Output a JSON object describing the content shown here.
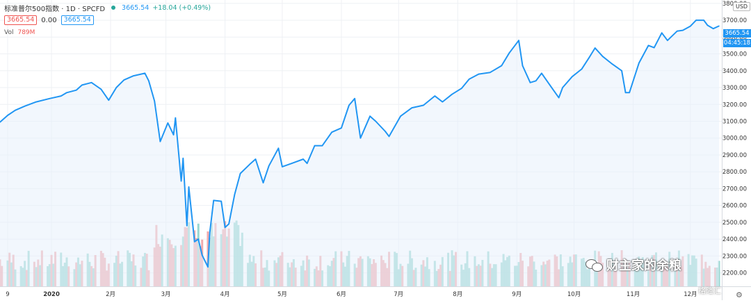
{
  "header": {
    "symbol_title": "标准普尔500指数 · 1D · SPCFD",
    "last_value": "3665.54",
    "change": "+18.04 (+0.49%)",
    "box_red": "3665.54",
    "zero_value": "0.00",
    "box_blue": "3665.54",
    "volume_label": "Vol",
    "volume_value": "789M",
    "currency": "USD",
    "price_label": "3665.54",
    "countdown": "04:45:18"
  },
  "watermark": {
    "text": "财主家的余粮",
    "footer": "格隆汇"
  },
  "colors": {
    "line": "#2196f3",
    "area": "#e8f1fc",
    "volume_up": "#8ed3cc",
    "volume_down": "#f0a1a5",
    "grid": "#eef0f4"
  },
  "icons": [
    "wechat-icon",
    "gear-icon"
  ],
  "chart_data": {
    "type": "line",
    "title": "标准普尔500指数 · 1D · SPCFD",
    "xlabel": "",
    "ylabel": "",
    "ylim": [
      2120,
      3820
    ],
    "y_ticks": [
      2200,
      2300,
      2400,
      2500,
      2600,
      2700,
      2800,
      2900,
      3000,
      3100,
      3200,
      3300,
      3400,
      3500,
      3600,
      3700,
      3800
    ],
    "x_ticks": [
      {
        "label": "9",
        "date": "2019-12-09"
      },
      {
        "label": "2020",
        "date": "2020-01-01"
      },
      {
        "label": "2月",
        "date": "2020-02-01"
      },
      {
        "label": "3月",
        "date": "2020-03-01"
      },
      {
        "label": "4月",
        "date": "2020-04-01"
      },
      {
        "label": "5月",
        "date": "2020-05-01"
      },
      {
        "label": "6月",
        "date": "2020-06-01"
      },
      {
        "label": "7月",
        "date": "2020-07-01"
      },
      {
        "label": "8月",
        "date": "2020-08-01"
      },
      {
        "label": "9月",
        "date": "2020-09-01"
      },
      {
        "label": "10月",
        "date": "2020-10-01"
      },
      {
        "label": "11月",
        "date": "2020-11-01"
      },
      {
        "label": "12月",
        "date": "2020-12-01"
      }
    ],
    "x_range": [
      "2019-12-05",
      "2020-12-16"
    ],
    "grid": true,
    "series": [
      {
        "name": "",
        "points": [
          [
            "2019-12-05",
            3095
          ],
          [
            "2019-12-09",
            3135
          ],
          [
            "2019-12-13",
            3165
          ],
          [
            "2019-12-18",
            3190
          ],
          [
            "2019-12-24",
            3215
          ],
          [
            "2019-12-31",
            3235
          ],
          [
            "2020-01-06",
            3250
          ],
          [
            "2020-01-09",
            3270
          ],
          [
            "2020-01-14",
            3285
          ],
          [
            "2020-01-17",
            3315
          ],
          [
            "2020-01-22",
            3330
          ],
          [
            "2020-01-27",
            3290
          ],
          [
            "2020-01-31",
            3225
          ],
          [
            "2020-02-04",
            3300
          ],
          [
            "2020-02-08",
            3345
          ],
          [
            "2020-02-13",
            3370
          ],
          [
            "2020-02-19",
            3385
          ],
          [
            "2020-02-21",
            3340
          ],
          [
            "2020-02-24",
            3220
          ],
          [
            "2020-02-27",
            2980
          ],
          [
            "2020-03-02",
            3090
          ],
          [
            "2020-03-05",
            3020
          ],
          [
            "2020-03-06",
            3120
          ],
          [
            "2020-03-09",
            2745
          ],
          [
            "2020-03-10",
            2880
          ],
          [
            "2020-03-12",
            2480
          ],
          [
            "2020-03-13",
            2710
          ],
          [
            "2020-03-16",
            2385
          ],
          [
            "2020-03-18",
            2400
          ],
          [
            "2020-03-20",
            2305
          ],
          [
            "2020-03-23",
            2235
          ],
          [
            "2020-03-24",
            2440
          ],
          [
            "2020-03-26",
            2630
          ],
          [
            "2020-03-30",
            2625
          ],
          [
            "2020-04-01",
            2470
          ],
          [
            "2020-04-03",
            2490
          ],
          [
            "2020-04-06",
            2665
          ],
          [
            "2020-04-09",
            2790
          ],
          [
            "2020-04-14",
            2845
          ],
          [
            "2020-04-17",
            2875
          ],
          [
            "2020-04-21",
            2735
          ],
          [
            "2020-04-24",
            2835
          ],
          [
            "2020-04-29",
            2940
          ],
          [
            "2020-05-01",
            2830
          ],
          [
            "2020-05-06",
            2850
          ],
          [
            "2020-05-12",
            2875
          ],
          [
            "2020-05-14",
            2850
          ],
          [
            "2020-05-18",
            2955
          ],
          [
            "2020-05-22",
            2955
          ],
          [
            "2020-05-27",
            3035
          ],
          [
            "2020-06-01",
            3060
          ],
          [
            "2020-06-05",
            3195
          ],
          [
            "2020-06-08",
            3235
          ],
          [
            "2020-06-11",
            3000
          ],
          [
            "2020-06-16",
            3130
          ],
          [
            "2020-06-19",
            3100
          ],
          [
            "2020-06-24",
            3040
          ],
          [
            "2020-06-26",
            3010
          ],
          [
            "2020-07-02",
            3130
          ],
          [
            "2020-07-08",
            3180
          ],
          [
            "2020-07-14",
            3195
          ],
          [
            "2020-07-20",
            3250
          ],
          [
            "2020-07-24",
            3215
          ],
          [
            "2020-07-29",
            3260
          ],
          [
            "2020-08-03",
            3295
          ],
          [
            "2020-08-07",
            3350
          ],
          [
            "2020-08-12",
            3380
          ],
          [
            "2020-08-18",
            3390
          ],
          [
            "2020-08-24",
            3430
          ],
          [
            "2020-08-28",
            3505
          ],
          [
            "2020-09-02",
            3580
          ],
          [
            "2020-09-04",
            3430
          ],
          [
            "2020-09-08",
            3330
          ],
          [
            "2020-09-11",
            3340
          ],
          [
            "2020-09-14",
            3385
          ],
          [
            "2020-09-18",
            3320
          ],
          [
            "2020-09-23",
            3240
          ],
          [
            "2020-09-25",
            3300
          ],
          [
            "2020-09-30",
            3365
          ],
          [
            "2020-10-05",
            3410
          ],
          [
            "2020-10-09",
            3480
          ],
          [
            "2020-10-12",
            3535
          ],
          [
            "2020-10-16",
            3485
          ],
          [
            "2020-10-21",
            3440
          ],
          [
            "2020-10-26",
            3400
          ],
          [
            "2020-10-28",
            3270
          ],
          [
            "2020-10-30",
            3270
          ],
          [
            "2020-11-04",
            3445
          ],
          [
            "2020-11-09",
            3550
          ],
          [
            "2020-11-12",
            3537
          ],
          [
            "2020-11-16",
            3625
          ],
          [
            "2020-11-19",
            3580
          ],
          [
            "2020-11-24",
            3635
          ],
          [
            "2020-11-27",
            3640
          ],
          [
            "2020-12-01",
            3665
          ],
          [
            "2020-12-04",
            3700
          ],
          [
            "2020-12-08",
            3700
          ],
          [
            "2020-12-10",
            3670
          ],
          [
            "2020-12-13",
            3650
          ],
          [
            "2020-12-16",
            3665.54
          ]
        ]
      }
    ]
  }
}
